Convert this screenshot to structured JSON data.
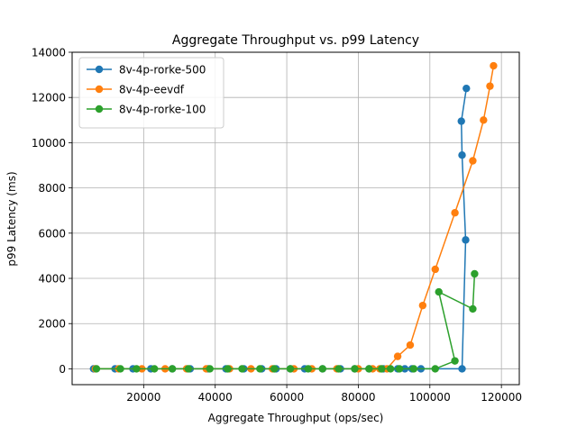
{
  "chart_data": {
    "type": "line",
    "title": "Aggregate Throughput vs. p99 Latency",
    "xlabel": "Aggregate Throughput (ops/sec)",
    "ylabel": "p99 Latency (ms)",
    "xlim": [
      0,
      125000
    ],
    "ylim": [
      -700,
      14000
    ],
    "xticks": [
      20000,
      40000,
      60000,
      80000,
      100000,
      120000
    ],
    "yticks": [
      0,
      2000,
      4000,
      6000,
      8000,
      10000,
      12000,
      14000
    ],
    "grid": true,
    "legend_position": "top-left",
    "series": [
      {
        "name": "8v-4p-rorke-500",
        "color": "#1f77b4",
        "x": [
          6000,
          12000,
          17000,
          22000,
          28000,
          33000,
          38000,
          43000,
          48000,
          53000,
          57000,
          61000,
          65000,
          70000,
          75000,
          79000,
          83000,
          87000,
          91000,
          93000,
          95000,
          97500,
          109000,
          110000,
          109000,
          108800,
          110200
        ],
        "y": [
          0,
          0,
          0,
          0,
          0,
          0,
          0,
          0,
          0,
          0,
          0,
          0,
          0,
          0,
          0,
          0,
          0,
          0,
          0,
          0,
          0,
          0,
          0,
          5700,
          9450,
          10950,
          12400
        ]
      },
      {
        "name": "8v-4p-eevdf",
        "color": "#ff7f0e",
        "x": [
          6500,
          13000,
          19500,
          26000,
          32000,
          37500,
          44000,
          50000,
          56000,
          62000,
          67000,
          74000,
          80000,
          84000,
          86000,
          88000,
          91000,
          94500,
          98000,
          101500,
          107000,
          112000,
          115000,
          116800,
          117800
        ],
        "y": [
          0,
          0,
          0,
          0,
          0,
          0,
          0,
          0,
          0,
          0,
          0,
          0,
          0,
          0,
          0,
          0,
          550,
          1050,
          2800,
          4400,
          6900,
          9200,
          11000,
          12500,
          13400
        ]
      },
      {
        "name": "8v-4p-rorke-100",
        "color": "#2ca02c",
        "x": [
          6800,
          13500,
          18000,
          23000,
          28000,
          32500,
          38500,
          43500,
          47500,
          52500,
          56500,
          61000,
          66000,
          70000,
          74500,
          79000,
          83000,
          86500,
          89000,
          91500,
          95500,
          101500,
          107000,
          102500,
          112000,
          112500
        ],
        "y": [
          0,
          0,
          0,
          0,
          0,
          0,
          0,
          0,
          0,
          0,
          0,
          0,
          0,
          0,
          0,
          0,
          0,
          0,
          0,
          0,
          0,
          0,
          350,
          3400,
          2650,
          4200
        ]
      }
    ]
  }
}
